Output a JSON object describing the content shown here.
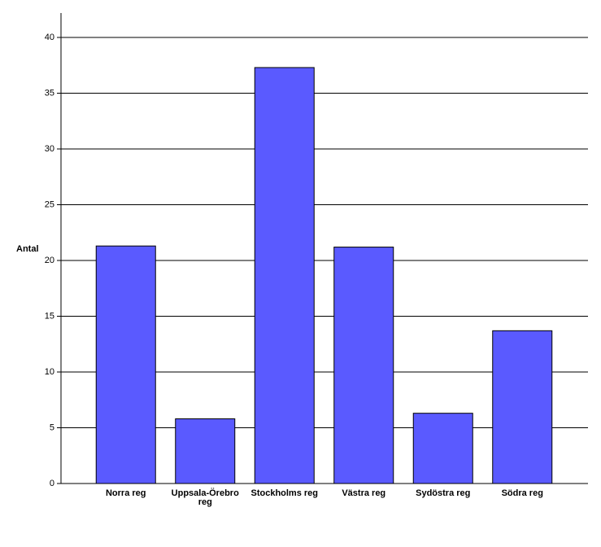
{
  "chart_data": {
    "type": "bar",
    "y_label": "Antal",
    "categories": [
      "Norra reg",
      "Uppsala-Örebro reg",
      "Stockholms reg",
      "Västra reg",
      "Sydöstra reg",
      "Södra reg"
    ],
    "values": [
      21.3,
      5.8,
      37.3,
      21.2,
      6.3,
      13.7
    ],
    "color": "#5a5aff",
    "ylim": [
      0,
      40
    ],
    "yticks": [
      0,
      5,
      10,
      15,
      20,
      25,
      30,
      35,
      40
    ],
    "grid": true
  }
}
